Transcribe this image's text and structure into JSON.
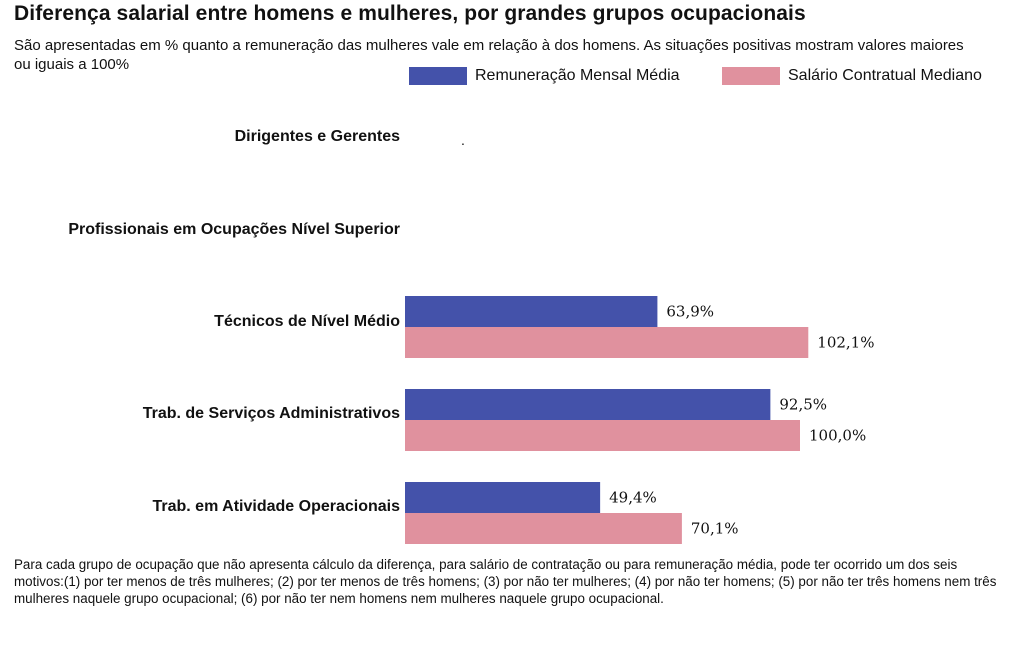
{
  "chart_data": {
    "type": "bar",
    "orientation": "horizontal",
    "title": "Diferença salarial entre homens e mulheres, por grandes grupos ocupacionais",
    "subtitle": "São apresentadas em % quanto a remuneração das mulheres vale em relação à dos homens. As situações positivas mostram valores maiores ou iguais a 100%",
    "categories": [
      "Dirigentes e Gerentes",
      "Profissionais em Ocupações Nível Superior",
      "Técnicos de Nível Médio",
      "Trab. de Serviços Administrativos",
      "Trab. em Atividade Operacionais"
    ],
    "series": [
      {
        "name": "Remuneração Mensal Média",
        "color": "#4452aa",
        "values": [
          null,
          null,
          63.9,
          92.5,
          49.4
        ],
        "labels": [
          "",
          "",
          "63,9%",
          "92,5%",
          "49,4%"
        ]
      },
      {
        "name": "Salário Contratual Mediano",
        "color": "#e0919e",
        "values": [
          null,
          null,
          102.1,
          100.0,
          70.1
        ],
        "labels": [
          "",
          "",
          "102,1%",
          "100,0%",
          "70,1%"
        ]
      }
    ],
    "xlim": [
      0,
      100
    ],
    "grid": false,
    "legend": "top-right",
    "footnote": "Para cada grupo de ocupação que não apresenta cálculo da diferença, para salário de contratação ou para remuneração média, pode ter ocorrido um dos seis motivos:(1) por ter menos de três mulheres; (2) por ter menos de três homens; (3) por não ter mulheres; (4) por não ter homens; (5) por não ter três homens nem três mulheres naquele grupo ocupacional; (6) por não ter nem homens nem mulheres naquele grupo ocupacional.",
    "marker": "."
  }
}
